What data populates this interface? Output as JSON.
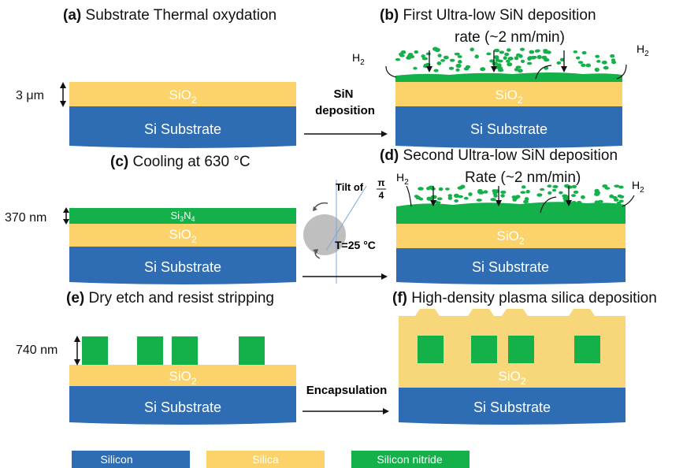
{
  "colors": {
    "silicon": "#2e6db4",
    "silica": "#fcd36a",
    "nitride": "#14b04a",
    "cap_silica": "#f8d77a"
  },
  "panels": {
    "a": {
      "letter": "(a)",
      "title": "Substrate Thermal oxydation",
      "dimension": "3 μm"
    },
    "b": {
      "letter": "(b)",
      "title_line1": "First Ultra-low SiN deposition",
      "title_line2": "rate (~2 nm/min)",
      "h2_left": "H",
      "h2_right": "H"
    },
    "c": {
      "letter": "(c)",
      "title": "Cooling at 630 °C",
      "dimension": "370 nm",
      "nitride_label": "Si",
      "nitride_sub3": "3",
      "nitride_N": "N",
      "nitride_sub4": "4"
    },
    "d": {
      "letter": "(d)",
      "title_line1": "Second Ultra-low SiN deposition",
      "title_line2": "Rate (~2 nm/min)",
      "h2_left": "H",
      "h2_right": "H"
    },
    "e": {
      "letter": "(e)",
      "title": "Dry etch and resist stripping",
      "dimension": "740 nm"
    },
    "f": {
      "letter": "(f)",
      "title": "High-density plasma silica deposition"
    }
  },
  "layers": {
    "silica_prefix": "SiO",
    "silica_sub": "2",
    "substrate": "Si Substrate",
    "h2_sub": "2"
  },
  "arrows": {
    "ab_line1": "SiN",
    "ab_line2": "deposition",
    "ef": "Encapsulation"
  },
  "tilt": {
    "label": "Tilt of",
    "frac_num": "π",
    "frac_den": "4",
    "temperature": "T=25 °C"
  },
  "legend": {
    "silicon": "Silicon",
    "silica": "Silica",
    "nitride": "Silicon nitride"
  }
}
